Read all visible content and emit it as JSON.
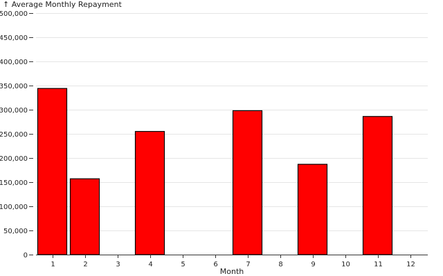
{
  "chart_data": {
    "type": "bar",
    "xlabel": "Month",
    "ylabel": "↑ Average Monthly Repayment",
    "categories": [
      "1",
      "2",
      "3",
      "4",
      "5",
      "6",
      "7",
      "8",
      "9",
      "10",
      "11",
      "12"
    ],
    "values": [
      344000,
      157000,
      null,
      255000,
      null,
      null,
      298000,
      null,
      187000,
      null,
      286000,
      null
    ],
    "y_ticks": [
      "0",
      "50,000",
      "100,000",
      "150,000",
      "200,000",
      "250,000",
      "300,000",
      "350,000",
      "400,000",
      "450,000",
      "500,000"
    ],
    "ylim": [
      0,
      500000
    ],
    "grid": true,
    "bar_color": "#ff0000",
    "bar_stroke": "#000000"
  }
}
